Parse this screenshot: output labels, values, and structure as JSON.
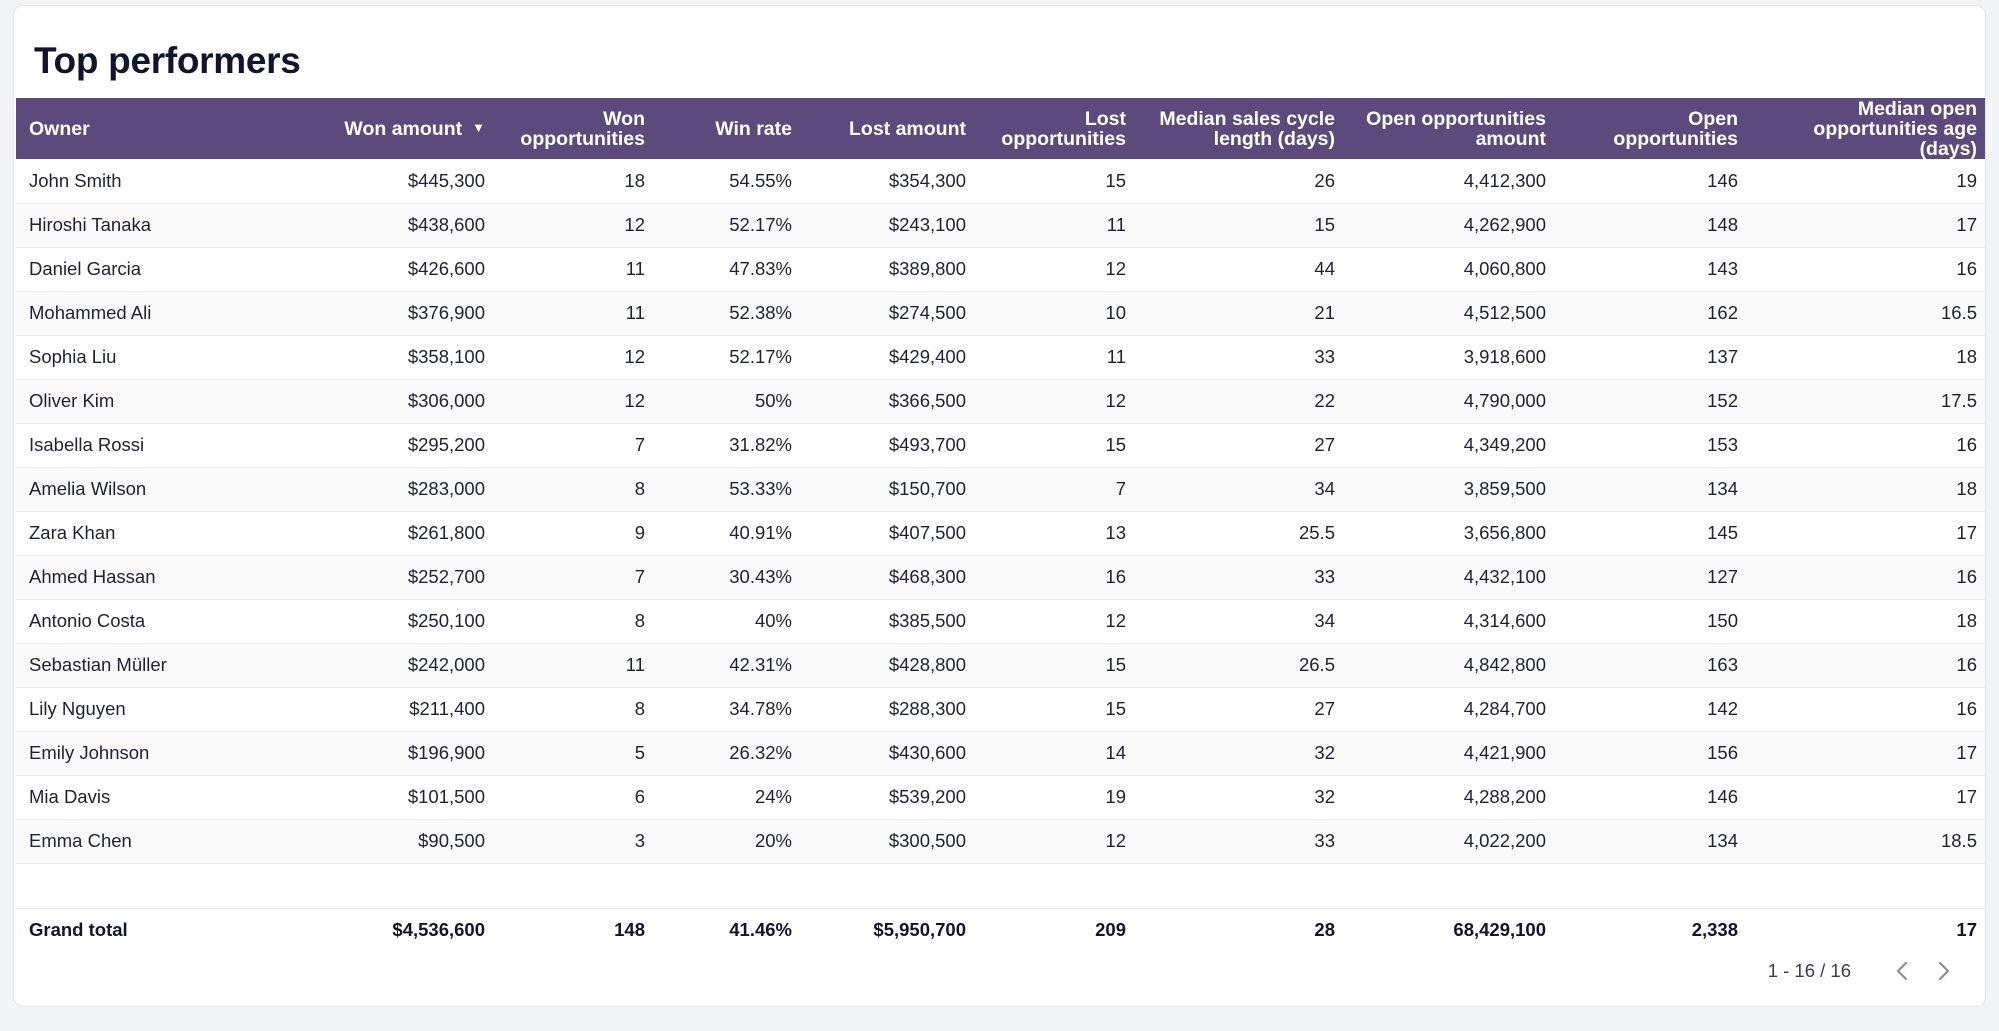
{
  "title": "Top performers",
  "columns": [
    "Owner",
    "Won amount",
    "Won\nopportunities",
    "Win rate",
    "Lost amount",
    "Lost\nopportunities",
    "Median sales cycle\nlength (days)",
    "Open opportunities\namount",
    "Open\nopportunities",
    "Median open\nopportunities age (days)"
  ],
  "sorted_column": "Won amount",
  "sort_direction_icon": "caret-down-icon",
  "rows": [
    [
      "John Smith",
      "$445,300",
      "18",
      "54.55%",
      "$354,300",
      "15",
      "26",
      "4,412,300",
      "146",
      "19"
    ],
    [
      "Hiroshi Tanaka",
      "$438,600",
      "12",
      "52.17%",
      "$243,100",
      "11",
      "15",
      "4,262,900",
      "148",
      "17"
    ],
    [
      "Daniel Garcia",
      "$426,600",
      "11",
      "47.83%",
      "$389,800",
      "12",
      "44",
      "4,060,800",
      "143",
      "16"
    ],
    [
      "Mohammed Ali",
      "$376,900",
      "11",
      "52.38%",
      "$274,500",
      "10",
      "21",
      "4,512,500",
      "162",
      "16.5"
    ],
    [
      "Sophia Liu",
      "$358,100",
      "12",
      "52.17%",
      "$429,400",
      "11",
      "33",
      "3,918,600",
      "137",
      "18"
    ],
    [
      "Oliver Kim",
      "$306,000",
      "12",
      "50%",
      "$366,500",
      "12",
      "22",
      "4,790,000",
      "152",
      "17.5"
    ],
    [
      "Isabella Rossi",
      "$295,200",
      "7",
      "31.82%",
      "$493,700",
      "15",
      "27",
      "4,349,200",
      "153",
      "16"
    ],
    [
      "Amelia Wilson",
      "$283,000",
      "8",
      "53.33%",
      "$150,700",
      "7",
      "34",
      "3,859,500",
      "134",
      "18"
    ],
    [
      "Zara Khan",
      "$261,800",
      "9",
      "40.91%",
      "$407,500",
      "13",
      "25.5",
      "3,656,800",
      "145",
      "17"
    ],
    [
      "Ahmed Hassan",
      "$252,700",
      "7",
      "30.43%",
      "$468,300",
      "16",
      "33",
      "4,432,100",
      "127",
      "16"
    ],
    [
      "Antonio Costa",
      "$250,100",
      "8",
      "40%",
      "$385,500",
      "12",
      "34",
      "4,314,600",
      "150",
      "18"
    ],
    [
      "Sebastian Müller",
      "$242,000",
      "11",
      "42.31%",
      "$428,800",
      "15",
      "26.5",
      "4,842,800",
      "163",
      "16"
    ],
    [
      "Lily Nguyen",
      "$211,400",
      "8",
      "34.78%",
      "$288,300",
      "15",
      "27",
      "4,284,700",
      "142",
      "16"
    ],
    [
      "Emily Johnson",
      "$196,900",
      "5",
      "26.32%",
      "$430,600",
      "14",
      "32",
      "4,421,900",
      "156",
      "17"
    ],
    [
      "Mia Davis",
      "$101,500",
      "6",
      "24%",
      "$539,200",
      "19",
      "32",
      "4,288,200",
      "146",
      "17"
    ],
    [
      "Emma Chen",
      "$90,500",
      "3",
      "20%",
      "$300,500",
      "12",
      "33",
      "4,022,200",
      "134",
      "18.5"
    ]
  ],
  "grand_total": [
    "Grand total",
    "$4,536,600",
    "148",
    "41.46%",
    "$5,950,700",
    "209",
    "28",
    "68,429,100",
    "2,338",
    "17"
  ],
  "pagination": {
    "label": "1 - 16 / 16",
    "prev_icon": "chevron-left-icon",
    "next_icon": "chevron-right-icon"
  },
  "colors": {
    "header_bg": "#5c4a7c",
    "header_text": "#ffffff",
    "title": "#11142d"
  }
}
